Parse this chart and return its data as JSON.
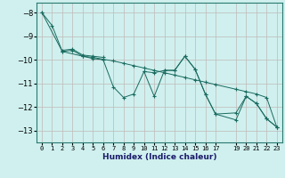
{
  "xlabel": "Humidex (Indice chaleur)",
  "bg_color": "#cff0ee",
  "grid_color": "#c0b8b8",
  "line_color": "#1a6b60",
  "xlim": [
    -0.5,
    23.5
  ],
  "ylim": [
    -13.5,
    -7.6
  ],
  "yticks": [
    -13,
    -12,
    -11,
    -10,
    -9,
    -8
  ],
  "xtick_labels": [
    "0",
    "1",
    "2",
    "3",
    "4",
    "5",
    "6",
    "7",
    "8",
    "9",
    "1011",
    "1213",
    "1415",
    "1617",
    "",
    "1920",
    "2122",
    "23"
  ],
  "lines": [
    {
      "x": [
        0,
        1,
        2,
        3,
        4,
        5,
        6,
        7,
        8,
        9,
        10,
        11,
        12,
        13,
        14,
        15,
        16,
        17,
        19,
        20,
        21,
        22,
        23
      ],
      "y": [
        -8.0,
        -8.55,
        -9.65,
        -9.6,
        -9.85,
        -9.95,
        -10.0,
        -11.15,
        -11.6,
        -11.45,
        -10.5,
        -11.55,
        -10.45,
        -10.45,
        -9.85,
        -10.4,
        -11.45,
        -12.3,
        -12.25,
        -11.55,
        -11.85,
        -12.5,
        -12.85
      ]
    },
    {
      "x": [
        0,
        2,
        4,
        5,
        6,
        7,
        8,
        9,
        10,
        11,
        12,
        13,
        14,
        15,
        16,
        17,
        19,
        20,
        21,
        22,
        23
      ],
      "y": [
        -8.0,
        -9.65,
        -9.85,
        -9.9,
        -9.98,
        -10.05,
        -10.15,
        -10.25,
        -10.35,
        -10.45,
        -10.55,
        -10.65,
        -10.75,
        -10.85,
        -10.95,
        -11.05,
        -11.25,
        -11.35,
        -11.45,
        -11.6,
        -12.85
      ]
    },
    {
      "x": [
        2,
        3,
        4,
        5,
        6
      ],
      "y": [
        -9.6,
        -9.55,
        -9.8,
        -9.85,
        -9.9
      ]
    },
    {
      "x": [
        10,
        11,
        12,
        13,
        14,
        15,
        16,
        17,
        19,
        20,
        21,
        22,
        23
      ],
      "y": [
        -10.5,
        -10.55,
        -10.45,
        -10.45,
        -9.85,
        -10.4,
        -11.45,
        -12.3,
        -12.55,
        -11.55,
        -11.85,
        -12.5,
        -12.85
      ]
    }
  ]
}
